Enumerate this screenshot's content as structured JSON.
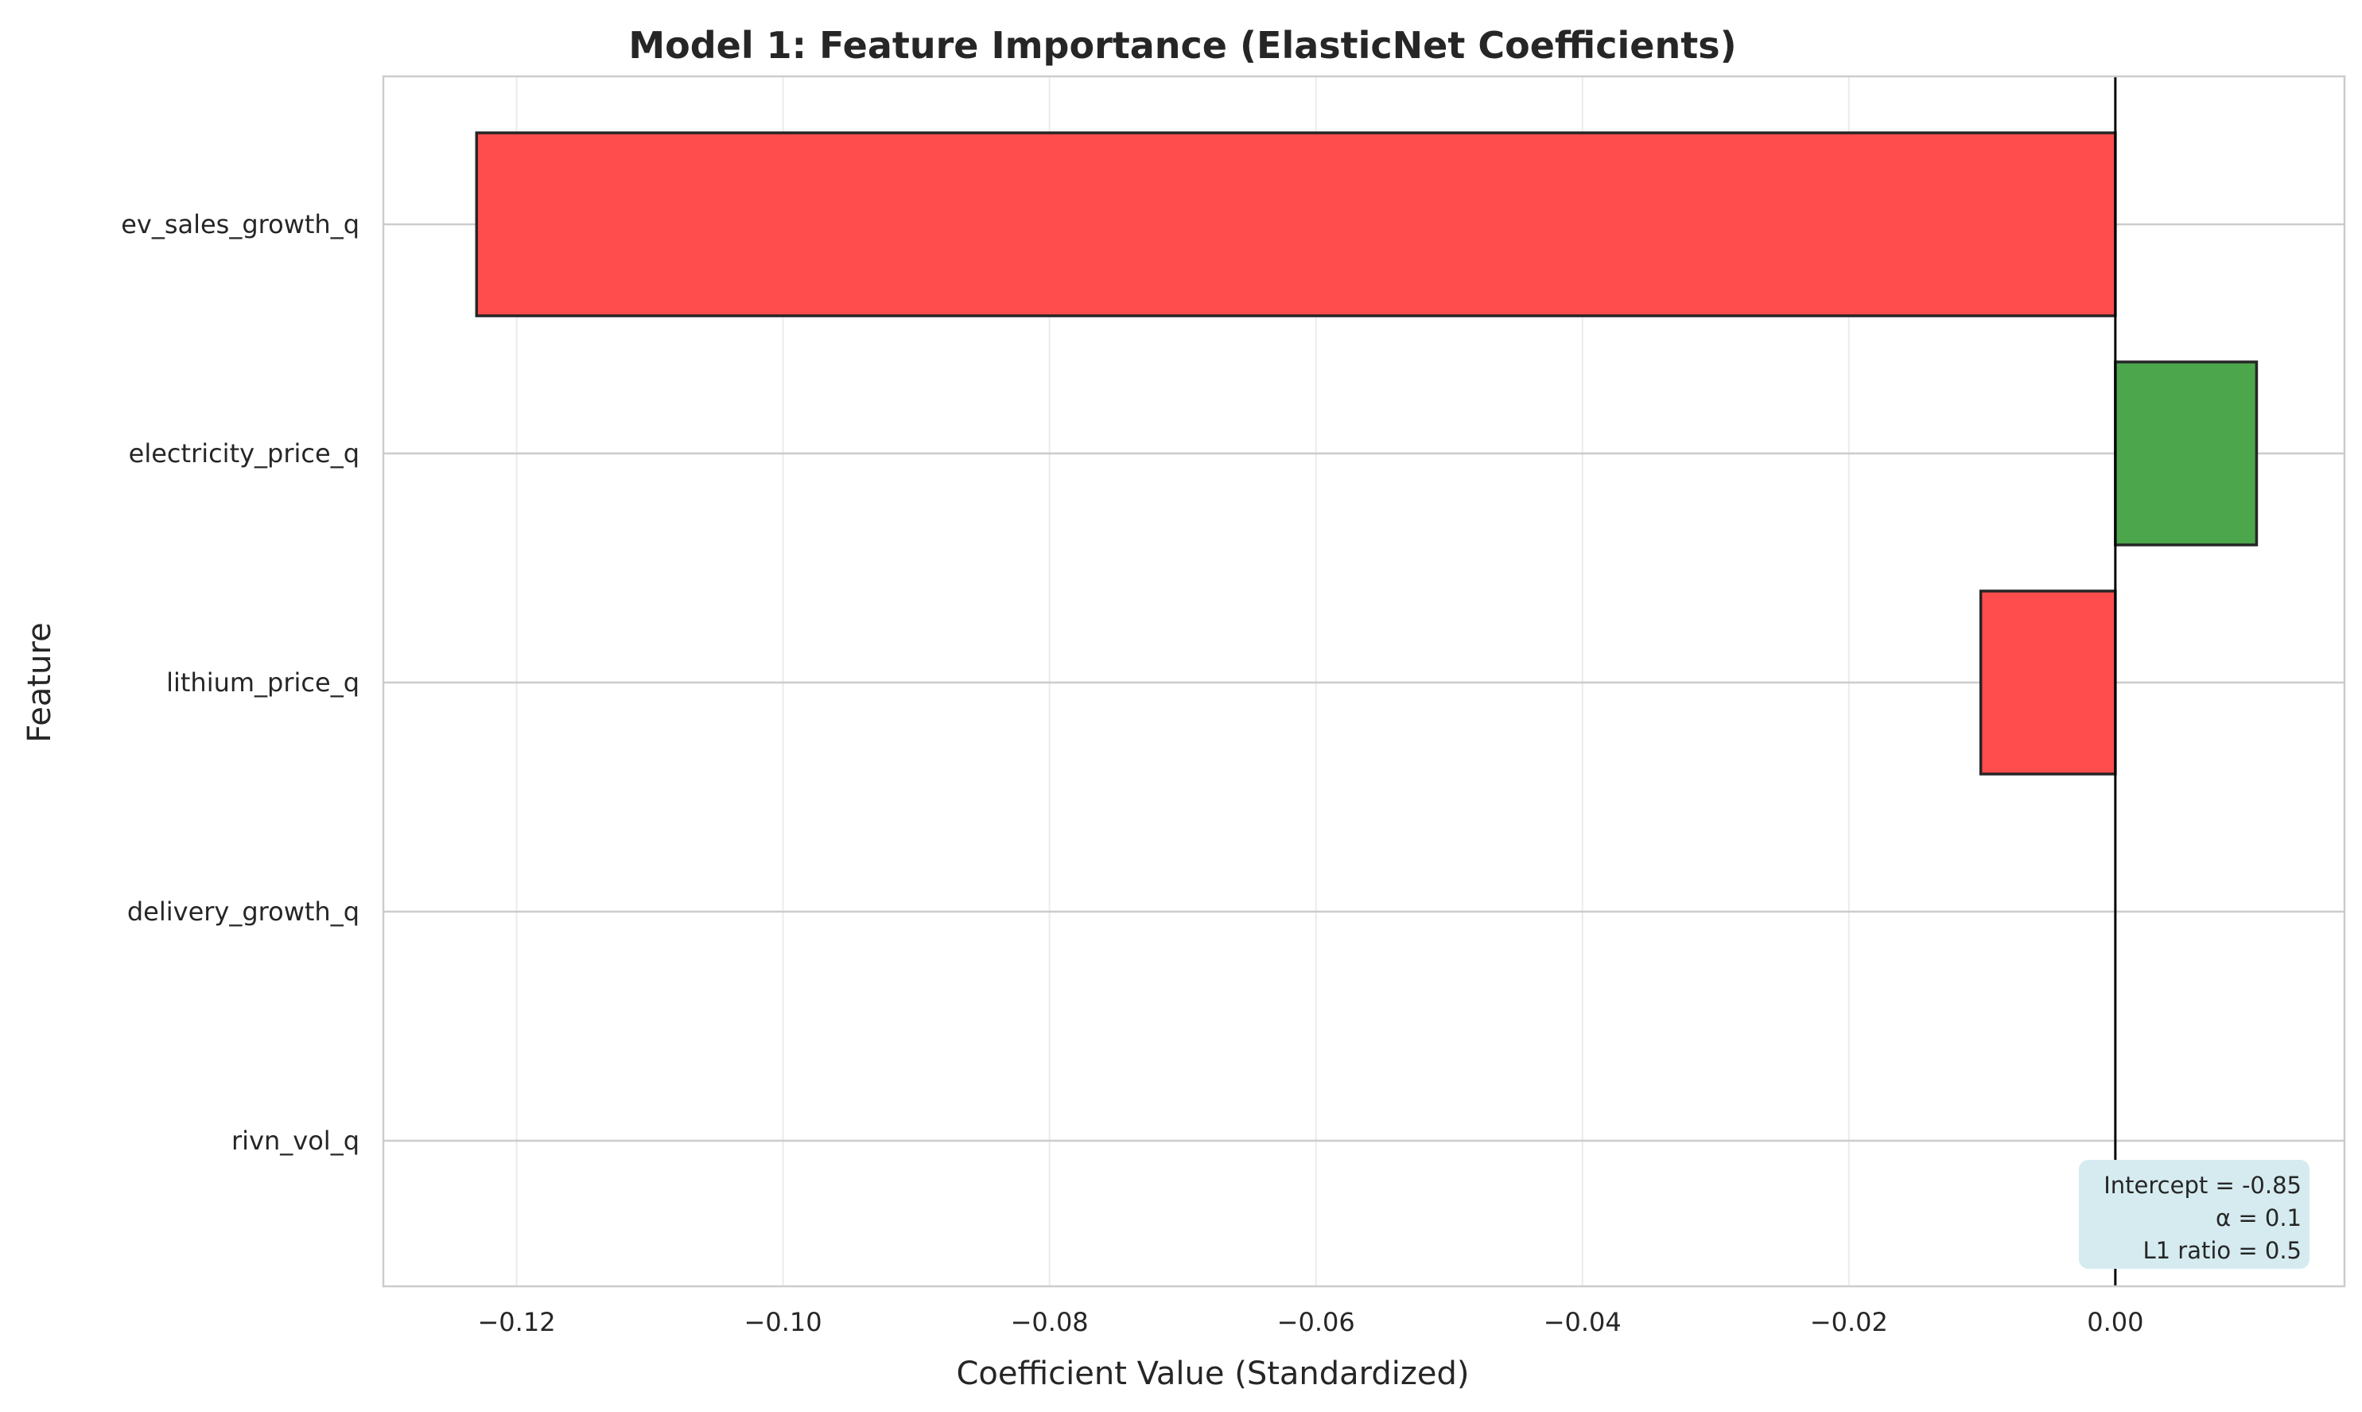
{
  "chart_data": {
    "type": "bar",
    "orientation": "horizontal",
    "title": "Model 1: Feature Importance (ElasticNet Coefficients)",
    "xlabel": "Coefficient Value (Standardized)",
    "ylabel": "Feature",
    "categories": [
      "ev_sales_growth_q",
      "electricity_price_q",
      "lithium_price_q",
      "delivery_growth_q",
      "rivn_vol_q"
    ],
    "values": [
      -0.123,
      0.0106,
      -0.0101,
      0.0,
      0.0
    ],
    "bar_colors": [
      "#ff4c4c",
      "#4ca64c",
      "#ff4c4c",
      "#ff4c4c",
      "#ff4c4c"
    ],
    "positive_color": "#4ca64c",
    "negative_color": "#ff4c4c",
    "edge_color": "#262626",
    "xlim": [
      -0.13,
      0.0172
    ],
    "xticks": [
      -0.12,
      -0.1,
      -0.08,
      -0.06,
      -0.04,
      -0.02,
      0.0
    ],
    "xtick_labels": [
      "−0.12",
      "−0.10",
      "−0.08",
      "−0.06",
      "−0.04",
      "−0.02",
      "0.00"
    ],
    "grid": true,
    "reference_line_x": 0.0,
    "annotation": {
      "lines": [
        "Intercept = -0.85",
        "α = 0.1",
        "L1 ratio = 0.5"
      ],
      "background": "#d5ebf0",
      "position": "bottom-right"
    }
  }
}
